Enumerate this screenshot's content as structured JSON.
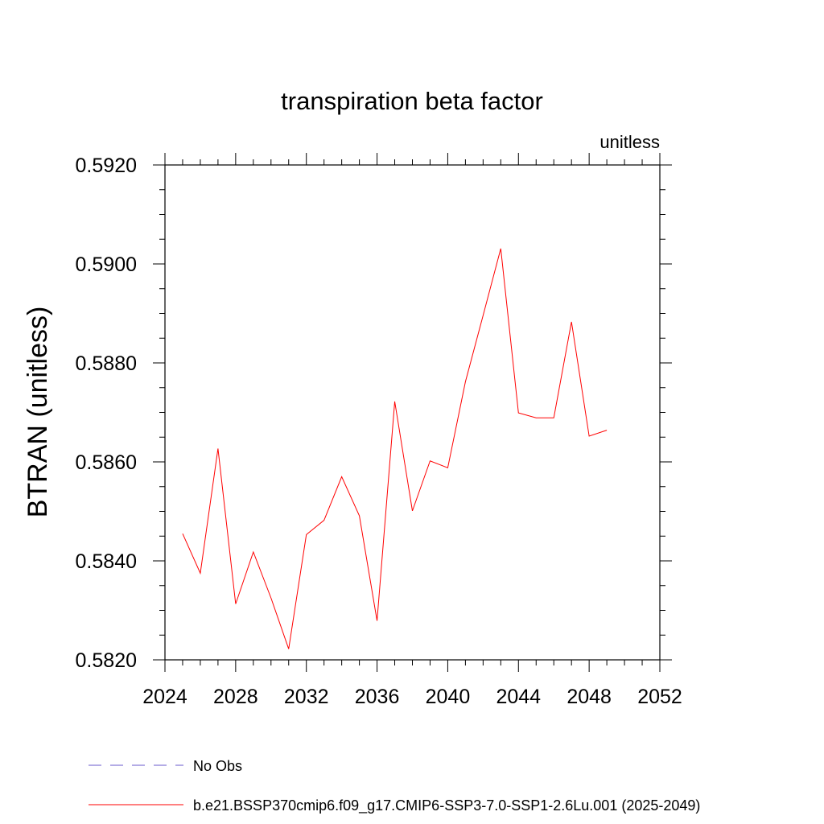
{
  "chart_data": {
    "type": "line",
    "title": "transpiration beta factor",
    "units_label": "unitless",
    "xlabel": "",
    "ylabel": "BTRAN  (unitless)",
    "xlim": [
      2024,
      2052
    ],
    "ylim": [
      0.582,
      0.592
    ],
    "x_ticks": [
      "2024",
      "2028",
      "2032",
      "2036",
      "2040",
      "2044",
      "2048",
      "2052"
    ],
    "y_ticks": [
      "0.5820",
      "0.5840",
      "0.5860",
      "0.5880",
      "0.5900",
      "0.5920"
    ],
    "grid": false,
    "legend_position": "bottom",
    "series": [
      {
        "name": "No Obs",
        "color": "#6a5acd",
        "style": "dashed",
        "x": [],
        "values": []
      },
      {
        "name": "b.e21.BSSP370cmip6.f09_g17.CMIP6-SSP3-7.0-SSP1-2.6Lu.001 (2025-2049)",
        "color": "#ff0000",
        "style": "solid",
        "x": [
          2025,
          2026,
          2027,
          2028,
          2029,
          2030,
          2031,
          2032,
          2033,
          2034,
          2035,
          2036,
          2037,
          2038,
          2039,
          2040,
          2041,
          2042,
          2043,
          2044,
          2045,
          2046,
          2047,
          2048,
          2049
        ],
        "values": [
          0.58455,
          0.58375,
          0.58627,
          0.58313,
          0.58418,
          0.58325,
          0.58222,
          0.58453,
          0.58482,
          0.5857,
          0.58491,
          0.58279,
          0.58722,
          0.58501,
          0.58602,
          0.58588,
          0.58762,
          0.58896,
          0.59031,
          0.58699,
          0.58689,
          0.58689,
          0.58883,
          0.58652,
          0.58664
        ]
      }
    ]
  }
}
